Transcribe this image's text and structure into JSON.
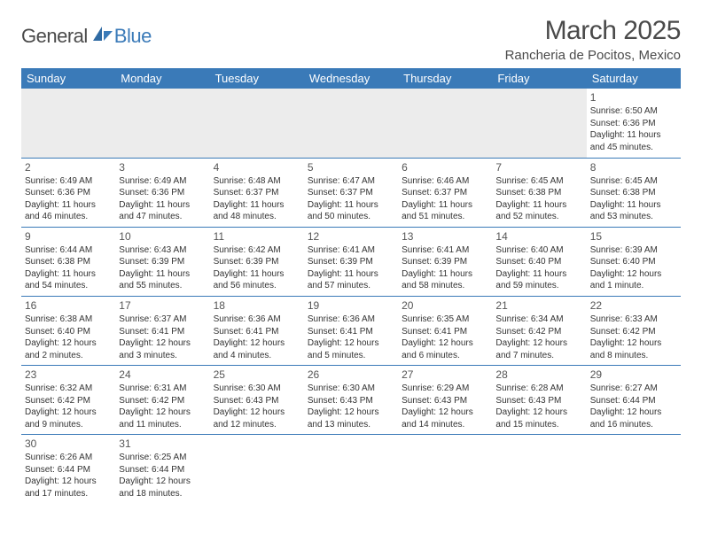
{
  "logo": {
    "part1": "General",
    "part2": "Blue"
  },
  "title": "March 2025",
  "location": "Rancheria de Pocitos, Mexico",
  "theme": {
    "header_bg": "#3a7ab8",
    "header_fg": "#ffffff",
    "rule": "#3a7ab8",
    "empty_bg": "#ececec",
    "text": "#333333",
    "title_color": "#4a4a4a"
  },
  "weekdays": [
    "Sunday",
    "Monday",
    "Tuesday",
    "Wednesday",
    "Thursday",
    "Friday",
    "Saturday"
  ],
  "weeks": [
    [
      null,
      null,
      null,
      null,
      null,
      null,
      {
        "n": 1,
        "sr": "6:50 AM",
        "ss": "6:36 PM",
        "dl": "11 hours and 45 minutes."
      }
    ],
    [
      {
        "n": 2,
        "sr": "6:49 AM",
        "ss": "6:36 PM",
        "dl": "11 hours and 46 minutes."
      },
      {
        "n": 3,
        "sr": "6:49 AM",
        "ss": "6:36 PM",
        "dl": "11 hours and 47 minutes."
      },
      {
        "n": 4,
        "sr": "6:48 AM",
        "ss": "6:37 PM",
        "dl": "11 hours and 48 minutes."
      },
      {
        "n": 5,
        "sr": "6:47 AM",
        "ss": "6:37 PM",
        "dl": "11 hours and 50 minutes."
      },
      {
        "n": 6,
        "sr": "6:46 AM",
        "ss": "6:37 PM",
        "dl": "11 hours and 51 minutes."
      },
      {
        "n": 7,
        "sr": "6:45 AM",
        "ss": "6:38 PM",
        "dl": "11 hours and 52 minutes."
      },
      {
        "n": 8,
        "sr": "6:45 AM",
        "ss": "6:38 PM",
        "dl": "11 hours and 53 minutes."
      }
    ],
    [
      {
        "n": 9,
        "sr": "6:44 AM",
        "ss": "6:38 PM",
        "dl": "11 hours and 54 minutes."
      },
      {
        "n": 10,
        "sr": "6:43 AM",
        "ss": "6:39 PM",
        "dl": "11 hours and 55 minutes."
      },
      {
        "n": 11,
        "sr": "6:42 AM",
        "ss": "6:39 PM",
        "dl": "11 hours and 56 minutes."
      },
      {
        "n": 12,
        "sr": "6:41 AM",
        "ss": "6:39 PM",
        "dl": "11 hours and 57 minutes."
      },
      {
        "n": 13,
        "sr": "6:41 AM",
        "ss": "6:39 PM",
        "dl": "11 hours and 58 minutes."
      },
      {
        "n": 14,
        "sr": "6:40 AM",
        "ss": "6:40 PM",
        "dl": "11 hours and 59 minutes."
      },
      {
        "n": 15,
        "sr": "6:39 AM",
        "ss": "6:40 PM",
        "dl": "12 hours and 1 minute."
      }
    ],
    [
      {
        "n": 16,
        "sr": "6:38 AM",
        "ss": "6:40 PM",
        "dl": "12 hours and 2 minutes."
      },
      {
        "n": 17,
        "sr": "6:37 AM",
        "ss": "6:41 PM",
        "dl": "12 hours and 3 minutes."
      },
      {
        "n": 18,
        "sr": "6:36 AM",
        "ss": "6:41 PM",
        "dl": "12 hours and 4 minutes."
      },
      {
        "n": 19,
        "sr": "6:36 AM",
        "ss": "6:41 PM",
        "dl": "12 hours and 5 minutes."
      },
      {
        "n": 20,
        "sr": "6:35 AM",
        "ss": "6:41 PM",
        "dl": "12 hours and 6 minutes."
      },
      {
        "n": 21,
        "sr": "6:34 AM",
        "ss": "6:42 PM",
        "dl": "12 hours and 7 minutes."
      },
      {
        "n": 22,
        "sr": "6:33 AM",
        "ss": "6:42 PM",
        "dl": "12 hours and 8 minutes."
      }
    ],
    [
      {
        "n": 23,
        "sr": "6:32 AM",
        "ss": "6:42 PM",
        "dl": "12 hours and 9 minutes."
      },
      {
        "n": 24,
        "sr": "6:31 AM",
        "ss": "6:42 PM",
        "dl": "12 hours and 11 minutes."
      },
      {
        "n": 25,
        "sr": "6:30 AM",
        "ss": "6:43 PM",
        "dl": "12 hours and 12 minutes."
      },
      {
        "n": 26,
        "sr": "6:30 AM",
        "ss": "6:43 PM",
        "dl": "12 hours and 13 minutes."
      },
      {
        "n": 27,
        "sr": "6:29 AM",
        "ss": "6:43 PM",
        "dl": "12 hours and 14 minutes."
      },
      {
        "n": 28,
        "sr": "6:28 AM",
        "ss": "6:43 PM",
        "dl": "12 hours and 15 minutes."
      },
      {
        "n": 29,
        "sr": "6:27 AM",
        "ss": "6:44 PM",
        "dl": "12 hours and 16 minutes."
      }
    ],
    [
      {
        "n": 30,
        "sr": "6:26 AM",
        "ss": "6:44 PM",
        "dl": "12 hours and 17 minutes."
      },
      {
        "n": 31,
        "sr": "6:25 AM",
        "ss": "6:44 PM",
        "dl": "12 hours and 18 minutes."
      },
      null,
      null,
      null,
      null,
      null
    ]
  ],
  "labels": {
    "sunrise": "Sunrise:",
    "sunset": "Sunset:",
    "daylight": "Daylight:"
  }
}
